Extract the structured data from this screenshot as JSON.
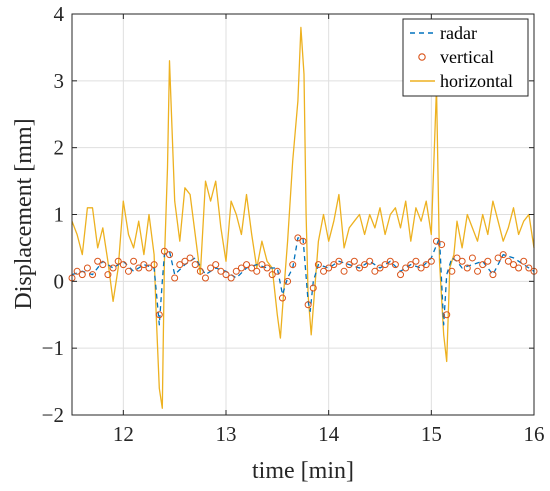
{
  "chart_data": {
    "type": "line",
    "title": "",
    "xlabel": "time [min]",
    "ylabel": "Displacement [mm]",
    "xlim": [
      11.5,
      16
    ],
    "ylim": [
      -2,
      4
    ],
    "x_ticks": [
      "12",
      "13",
      "14",
      "15",
      "16"
    ],
    "y_ticks": [
      "-2",
      "-1",
      "0",
      "1",
      "2",
      "3",
      "4"
    ],
    "grid": true,
    "legend_position": "top-right",
    "series": [
      {
        "name": "radar",
        "style": "dashed",
        "color": "#0072BD",
        "x": [
          11.5,
          11.6,
          11.7,
          11.8,
          11.9,
          12.0,
          12.1,
          12.2,
          12.3,
          12.33,
          12.35,
          12.38,
          12.4,
          12.45,
          12.5,
          12.6,
          12.7,
          12.8,
          12.9,
          13.0,
          13.1,
          13.2,
          13.3,
          13.4,
          13.5,
          13.55,
          13.6,
          13.65,
          13.7,
          13.75,
          13.8,
          13.82,
          13.85,
          13.9,
          14.0,
          14.1,
          14.2,
          14.3,
          14.4,
          14.5,
          14.6,
          14.7,
          14.8,
          14.9,
          15.0,
          15.08,
          15.12,
          15.15,
          15.2,
          15.25,
          15.3,
          15.4,
          15.5,
          15.6,
          15.7,
          15.8,
          15.9,
          16.0
        ],
        "y": [
          0.1,
          0.15,
          0.1,
          0.3,
          0.2,
          0.3,
          0.15,
          0.25,
          0.2,
          -0.3,
          -0.65,
          0.0,
          0.4,
          0.45,
          0.1,
          0.25,
          0.35,
          0.1,
          0.2,
          0.15,
          0.05,
          0.2,
          0.25,
          0.2,
          0.2,
          -0.2,
          0.05,
          0.2,
          0.65,
          0.65,
          -0.3,
          -0.45,
          0.0,
          0.25,
          0.2,
          0.3,
          0.25,
          0.2,
          0.3,
          0.2,
          0.3,
          0.15,
          0.25,
          0.2,
          0.35,
          0.65,
          -0.65,
          0.1,
          0.35,
          0.3,
          0.2,
          0.25,
          0.3,
          0.1,
          0.4,
          0.35,
          0.25,
          0.15
        ]
      },
      {
        "name": "vertical",
        "style": "markers",
        "color": "#D95319",
        "x": [
          11.5,
          11.55,
          11.6,
          11.65,
          11.7,
          11.75,
          11.8,
          11.85,
          11.9,
          11.95,
          12.0,
          12.05,
          12.1,
          12.15,
          12.2,
          12.25,
          12.3,
          12.35,
          12.4,
          12.45,
          12.5,
          12.55,
          12.6,
          12.65,
          12.7,
          12.75,
          12.8,
          12.85,
          12.9,
          12.95,
          13.0,
          13.05,
          13.1,
          13.15,
          13.2,
          13.25,
          13.3,
          13.35,
          13.4,
          13.45,
          13.5,
          13.55,
          13.6,
          13.65,
          13.7,
          13.75,
          13.8,
          13.85,
          13.9,
          13.95,
          14.0,
          14.05,
          14.1,
          14.15,
          14.2,
          14.25,
          14.3,
          14.35,
          14.4,
          14.45,
          14.5,
          14.55,
          14.6,
          14.65,
          14.7,
          14.75,
          14.8,
          14.85,
          14.9,
          14.95,
          15.0,
          15.05,
          15.1,
          15.15,
          15.2,
          15.25,
          15.3,
          15.35,
          15.4,
          15.45,
          15.5,
          15.55,
          15.6,
          15.65,
          15.7,
          15.75,
          15.8,
          15.85,
          15.9,
          15.95,
          16.0
        ],
        "y": [
          0.05,
          0.15,
          0.1,
          0.2,
          0.1,
          0.3,
          0.25,
          0.1,
          0.2,
          0.3,
          0.25,
          0.15,
          0.3,
          0.2,
          0.25,
          0.2,
          0.25,
          -0.5,
          0.45,
          0.4,
          0.05,
          0.25,
          0.3,
          0.35,
          0.25,
          0.15,
          0.05,
          0.2,
          0.25,
          0.15,
          0.1,
          0.05,
          0.15,
          0.2,
          0.25,
          0.2,
          0.15,
          0.25,
          0.2,
          0.1,
          0.15,
          -0.25,
          0.0,
          0.25,
          0.65,
          0.6,
          -0.35,
          -0.1,
          0.25,
          0.15,
          0.2,
          0.25,
          0.3,
          0.15,
          0.25,
          0.3,
          0.2,
          0.25,
          0.3,
          0.15,
          0.2,
          0.25,
          0.3,
          0.25,
          0.1,
          0.2,
          0.25,
          0.3,
          0.2,
          0.25,
          0.3,
          0.6,
          0.55,
          -0.5,
          0.15,
          0.35,
          0.3,
          0.2,
          0.35,
          0.15,
          0.25,
          0.3,
          0.1,
          0.35,
          0.4,
          0.3,
          0.25,
          0.2,
          0.3,
          0.2,
          0.15
        ]
      },
      {
        "name": "horizontal",
        "style": "solid",
        "color": "#EDB120",
        "x": [
          11.5,
          11.55,
          11.6,
          11.65,
          11.7,
          11.75,
          11.8,
          11.85,
          11.9,
          11.95,
          12.0,
          12.05,
          12.1,
          12.15,
          12.2,
          12.25,
          12.3,
          12.32,
          12.35,
          12.38,
          12.4,
          12.43,
          12.45,
          12.5,
          12.55,
          12.6,
          12.65,
          12.7,
          12.75,
          12.8,
          12.85,
          12.9,
          12.95,
          13.0,
          13.05,
          13.1,
          13.15,
          13.2,
          13.25,
          13.3,
          13.35,
          13.4,
          13.45,
          13.5,
          13.53,
          13.56,
          13.6,
          13.65,
          13.7,
          13.73,
          13.76,
          13.78,
          13.8,
          13.83,
          13.86,
          13.9,
          13.95,
          14.0,
          14.05,
          14.1,
          14.15,
          14.2,
          14.25,
          14.3,
          14.35,
          14.4,
          14.45,
          14.5,
          14.55,
          14.6,
          14.65,
          14.7,
          14.75,
          14.8,
          14.85,
          14.9,
          14.95,
          15.0,
          15.05,
          15.08,
          15.12,
          15.15,
          15.18,
          15.22,
          15.25,
          15.3,
          15.35,
          15.4,
          15.45,
          15.5,
          15.55,
          15.6,
          15.65,
          15.7,
          15.75,
          15.8,
          15.85,
          15.9,
          15.95,
          16.0
        ],
        "y": [
          0.9,
          0.7,
          0.4,
          1.1,
          1.1,
          0.5,
          0.8,
          0.3,
          -0.3,
          0.2,
          1.2,
          0.7,
          0.5,
          0.9,
          0.4,
          1.0,
          0.4,
          -0.5,
          -1.6,
          -1.9,
          0.3,
          1.7,
          3.3,
          1.2,
          0.6,
          1.4,
          1.3,
          0.7,
          0.1,
          1.5,
          1.2,
          1.5,
          0.8,
          0.3,
          1.2,
          1.0,
          0.7,
          1.3,
          0.7,
          0.2,
          0.6,
          0.3,
          0.2,
          -0.5,
          -0.85,
          -0.2,
          0.6,
          1.8,
          2.7,
          3.8,
          3.1,
          1.0,
          -0.2,
          -0.8,
          -0.2,
          0.6,
          1.0,
          0.6,
          0.9,
          1.3,
          0.5,
          0.8,
          0.9,
          1.0,
          0.7,
          1.0,
          0.8,
          1.1,
          0.7,
          1.0,
          1.1,
          0.8,
          1.2,
          0.6,
          1.1,
          0.9,
          1.2,
          0.7,
          2.9,
          0.3,
          -0.8,
          -1.2,
          0.2,
          0.4,
          0.9,
          0.5,
          1.0,
          0.8,
          0.6,
          1.0,
          0.7,
          1.2,
          0.9,
          0.6,
          0.8,
          1.1,
          0.7,
          0.9,
          1.0,
          0.5
        ]
      }
    ]
  }
}
